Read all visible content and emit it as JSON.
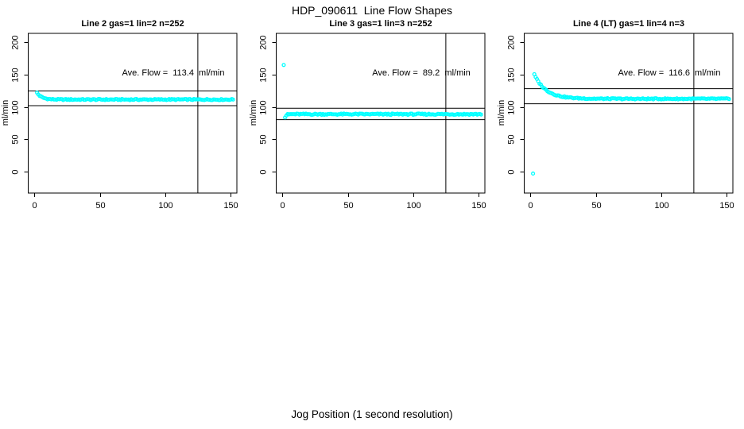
{
  "title": "HDP_090611  Line Flow Shapes",
  "outer_xlabel": "Jog Position (1 second resolution)",
  "colors": {
    "points": "#00FFFF",
    "axis": "#000000",
    "background": "#FFFFFF"
  },
  "axes": {
    "x_ticks": [
      0,
      50,
      100,
      150
    ],
    "y_ticks": [
      0,
      50,
      100,
      150,
      200
    ]
  },
  "chart_data": [
    {
      "type": "scatter",
      "title": "Line 2 gas=1 lin=2 n=252",
      "ylabel": "ml/min",
      "annotation": "Ave. Flow =  113.4  ml/min",
      "ave_flow_ml_min": 113.4,
      "n_points": 252,
      "xlim": [
        -5,
        157
      ],
      "ylim": [
        -33,
        212
      ],
      "hlines": [
        124.7,
        102.1
      ],
      "vline": 125,
      "series_spec": {
        "x_start": 2,
        "x_end": 152,
        "x_step": 1,
        "initial": 122,
        "settle": 111.5,
        "tau": 3.5,
        "jitter": 0.9
      },
      "extra_points": []
    },
    {
      "type": "scatter",
      "title": "Line 3 gas=1 lin=3 n=252",
      "ylabel": "ml/min",
      "annotation": "Ave. Flow =  89.2  ml/min",
      "ave_flow_ml_min": 89.2,
      "n_points": 252,
      "xlim": [
        -5,
        157
      ],
      "ylim": [
        -33,
        212
      ],
      "hlines": [
        98.1,
        80.3
      ],
      "vline": 125,
      "series_spec": {
        "x_start": 2,
        "x_end": 152,
        "x_step": 1,
        "initial": 84,
        "settle": 88.8,
        "tau": 1,
        "jitter": 1.0
      },
      "extra_points": [
        [
          1,
          165
        ]
      ]
    },
    {
      "type": "scatter",
      "title": "Line 4 (LT) gas=1 lin=4 n=3",
      "ylabel": "ml/min",
      "annotation": "Ave. Flow =  116.6  ml/min",
      "ave_flow_ml_min": 116.6,
      "n_points": 3,
      "xlim": [
        -5,
        157
      ],
      "ylim": [
        -33,
        212
      ],
      "hlines": [
        128.3,
        104.9
      ],
      "vline": 125,
      "series_spec": {
        "x_start": 3,
        "x_end": 152,
        "x_step": 1,
        "initial": 150,
        "settle": 112.6,
        "tau": 9,
        "jitter": 0.9
      },
      "extra_points": [
        [
          2,
          -3
        ]
      ]
    }
  ]
}
